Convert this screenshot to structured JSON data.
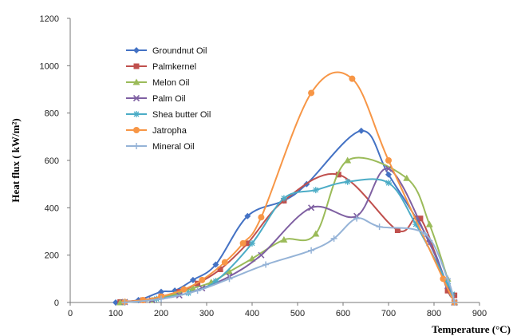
{
  "chart_data": {
    "type": "line",
    "title": "",
    "xlabel": "Temperature (°C)",
    "ylabel": "Heat flux ( kW/m²)",
    "xlim": [
      0,
      900
    ],
    "ylim": [
      0,
      1200
    ],
    "xticks": [
      0,
      100,
      200,
      300,
      400,
      500,
      600,
      700,
      800,
      900
    ],
    "yticks": [
      0,
      200,
      400,
      600,
      800,
      1000,
      1200
    ],
    "grid": false,
    "legend_position": "top-left",
    "series": [
      {
        "name": "Groundnut Oil",
        "color": "#4472C4",
        "marker": "diamond",
        "x": [
          100,
          150,
          200,
          230,
          270,
          320,
          390,
          470,
          520,
          640,
          700,
          790,
          830,
          840
        ],
        "y": [
          0,
          10,
          45,
          50,
          95,
          160,
          365,
          430,
          500,
          725,
          540,
          260,
          60,
          30
        ]
      },
      {
        "name": "Palmkernel",
        "color": "#C0504D",
        "marker": "square",
        "x": [
          110,
          160,
          200,
          240,
          280,
          330,
          390,
          470,
          590,
          720,
          770,
          830,
          845
        ],
        "y": [
          2,
          10,
          25,
          45,
          80,
          140,
          250,
          430,
          540,
          305,
          355,
          50,
          30
        ]
      },
      {
        "name": "Melon Oil",
        "color": "#9BBB59",
        "marker": "triangle",
        "x": [
          110,
          180,
          230,
          270,
          310,
          350,
          400,
          470,
          540,
          610,
          740,
          790,
          830,
          845
        ],
        "y": [
          0,
          10,
          35,
          60,
          85,
          130,
          185,
          265,
          290,
          600,
          525,
          330,
          100,
          0
        ]
      },
      {
        "name": "Palm Oil",
        "color": "#7F60A2",
        "marker": "x",
        "x": [
          120,
          180,
          240,
          290,
          350,
          420,
          530,
          630,
          700,
          790,
          830,
          845
        ],
        "y": [
          2,
          10,
          30,
          60,
          110,
          200,
          400,
          365,
          565,
          250,
          70,
          0
        ]
      },
      {
        "name": "Shea butter Oil",
        "color": "#4BACC6",
        "marker": "star",
        "x": [
          120,
          190,
          260,
          320,
          400,
          470,
          540,
          610,
          700,
          760,
          830,
          840
        ],
        "y": [
          2,
          15,
          40,
          90,
          250,
          440,
          475,
          510,
          505,
          330,
          80,
          35
        ]
      },
      {
        "name": "Jatropha",
        "color": "#F79646",
        "marker": "circle",
        "x": [
          120,
          160,
          200,
          250,
          290,
          340,
          380,
          420,
          530,
          620,
          700,
          820,
          845
        ],
        "y": [
          2,
          10,
          25,
          55,
          95,
          170,
          250,
          360,
          885,
          945,
          600,
          100,
          0
        ]
      },
      {
        "name": "Mineral Oil",
        "color": "#95B3D7",
        "marker": "plus",
        "x": [
          120,
          200,
          280,
          350,
          430,
          530,
          580,
          630,
          680,
          780,
          830,
          845
        ],
        "y": [
          0,
          15,
          50,
          100,
          160,
          220,
          270,
          355,
          320,
          290,
          100,
          0
        ]
      }
    ]
  }
}
